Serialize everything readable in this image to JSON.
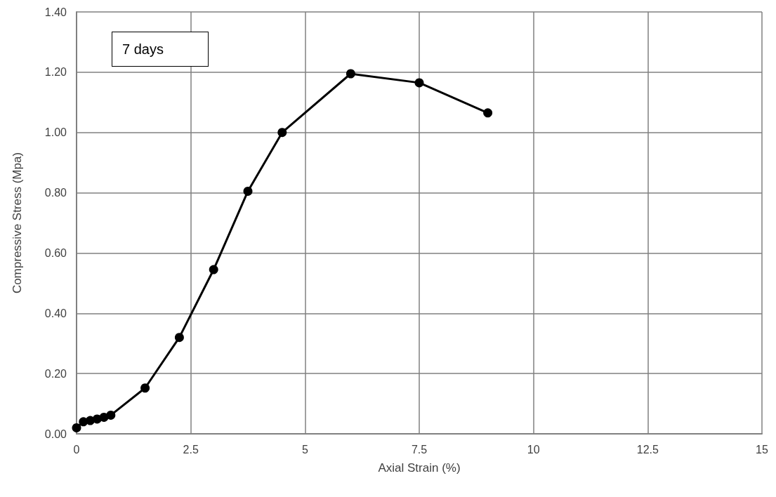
{
  "chart_data": {
    "type": "line",
    "xlabel": "Axial Strain (%)",
    "ylabel": "Compressive Stress (Mpa)",
    "annotations": [
      "7 days"
    ],
    "x": [
      0,
      0.15,
      0.3,
      0.45,
      0.6,
      0.75,
      1.5,
      2.25,
      3,
      3.75,
      4.5,
      6,
      7.5,
      9
    ],
    "series": [
      {
        "color": "#000000",
        "values": [
          0.02,
          0.04,
          0.044,
          0.049,
          0.055,
          0.062,
          0.152,
          0.32,
          0.545,
          0.805,
          1.0,
          1.195,
          1.165,
          1.065
        ]
      }
    ],
    "xlim": [
      0,
      15
    ],
    "xticks": [
      0,
      2.5,
      5,
      7.5,
      10,
      12.5,
      15
    ],
    "ylim": [
      0,
      1.4
    ],
    "yticks": [
      {
        "value": 0,
        "label": "0.00"
      },
      {
        "value": 0.2,
        "label": "0.20"
      },
      {
        "value": 0.4,
        "label": "0.40"
      },
      {
        "value": 0.6,
        "label": "0.60"
      },
      {
        "value": 0.8,
        "label": "0.80"
      },
      {
        "value": 1.0,
        "label": "1.00"
      },
      {
        "value": 1.2,
        "label": "1.20"
      },
      {
        "value": 1.4,
        "label": "1.40"
      }
    ],
    "grid": true,
    "marker": "circle",
    "line_style": "solid"
  }
}
